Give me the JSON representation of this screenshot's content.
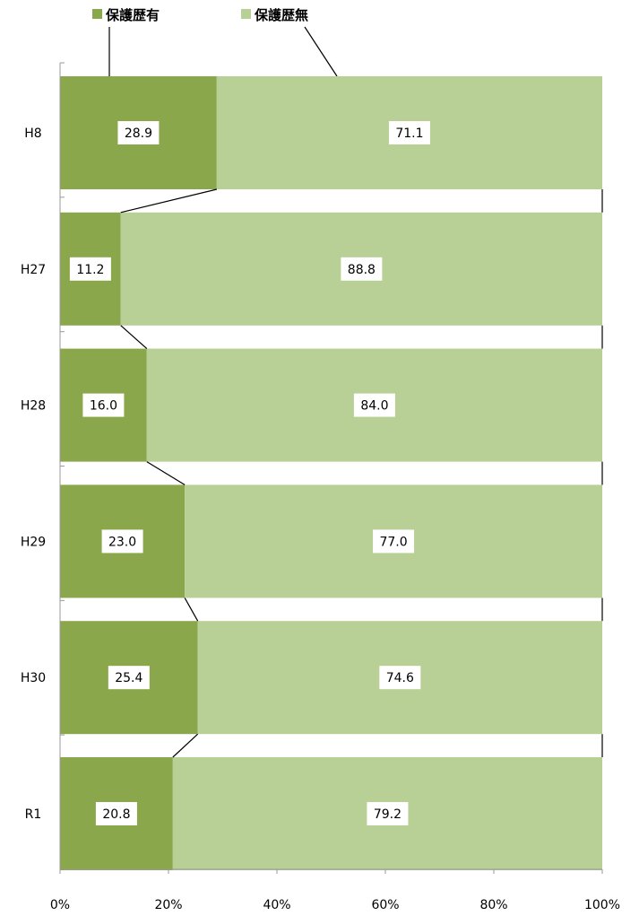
{
  "chart_data": {
    "type": "bar",
    "orientation": "horizontal",
    "stacked": "percent",
    "categories": [
      "H8",
      "H27",
      "H28",
      "H29",
      "H30",
      "R1"
    ],
    "series": [
      {
        "name": "保護歴有",
        "values": [
          28.9,
          11.2,
          16.0,
          23.0,
          25.4,
          20.8
        ],
        "labels": [
          "28.9",
          "11.2",
          "16.0",
          "23.0",
          "25.4",
          "20.8"
        ],
        "color": "#8aa74b"
      },
      {
        "name": "保護歴無",
        "values": [
          71.1,
          88.8,
          84.0,
          77.0,
          74.6,
          79.2
        ],
        "labels": [
          "71.1",
          "88.8",
          "84.0",
          "77.0",
          "74.6",
          "79.2"
        ],
        "color": "#b8cf95"
      }
    ],
    "xlim": [
      0,
      100
    ],
    "xticks": [
      "0%",
      "20%",
      "40%",
      "60%",
      "80%",
      "100%"
    ],
    "legend_position": "top",
    "series_lines": true,
    "grid": false
  }
}
